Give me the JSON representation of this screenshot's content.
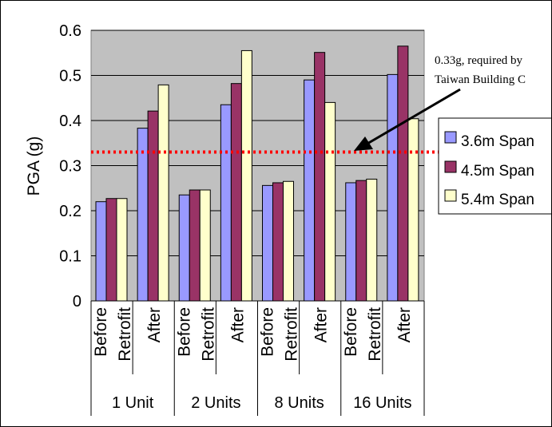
{
  "chart_data": {
    "type": "bar",
    "ylabel": "PGA (g)",
    "ylim": [
      0,
      0.6
    ],
    "yticks": [
      "0",
      "0.1",
      "0.2",
      "0.3",
      "0.4",
      "0.5",
      "0.6"
    ],
    "grid": true,
    "legend_position": "right",
    "groups": [
      {
        "label": "1 Unit",
        "subgroups": [
          {
            "label_lines": [
              "Before",
              "Retrofit"
            ],
            "values": [
              0.22,
              0.227,
              0.227
            ]
          },
          {
            "label_lines": [
              "After"
            ],
            "values": [
              0.383,
              0.421,
              0.479
            ]
          }
        ]
      },
      {
        "label": "2 Units",
        "subgroups": [
          {
            "label_lines": [
              "Before",
              "Retrofit"
            ],
            "values": [
              0.235,
              0.246,
              0.246
            ]
          },
          {
            "label_lines": [
              "After"
            ],
            "values": [
              0.435,
              0.482,
              0.555
            ]
          }
        ]
      },
      {
        "label": "8 Units",
        "subgroups": [
          {
            "label_lines": [
              "Before",
              "Retrofit"
            ],
            "values": [
              0.256,
              0.262,
              0.265
            ]
          },
          {
            "label_lines": [
              "After"
            ],
            "values": [
              0.49,
              0.551,
              0.44
            ]
          }
        ]
      },
      {
        "label": "16 Units",
        "subgroups": [
          {
            "label_lines": [
              "Before",
              "Retrofit"
            ],
            "values": [
              0.262,
              0.267,
              0.27
            ]
          },
          {
            "label_lines": [
              "After"
            ],
            "values": [
              0.502,
              0.565,
              0.404
            ]
          }
        ]
      }
    ],
    "series": [
      {
        "name": "3.6m Span",
        "color": "#9999ff"
      },
      {
        "name": "4.5m Span",
        "color": "#993366"
      },
      {
        "name": "5.4m Span",
        "color": "#ffffcc"
      }
    ],
    "reference_line": {
      "value": 0.33,
      "color": "#ff0000",
      "style": "dotted"
    },
    "annotation": {
      "lines": [
        "0.33g, required by",
        "Taiwan Building C"
      ]
    }
  }
}
